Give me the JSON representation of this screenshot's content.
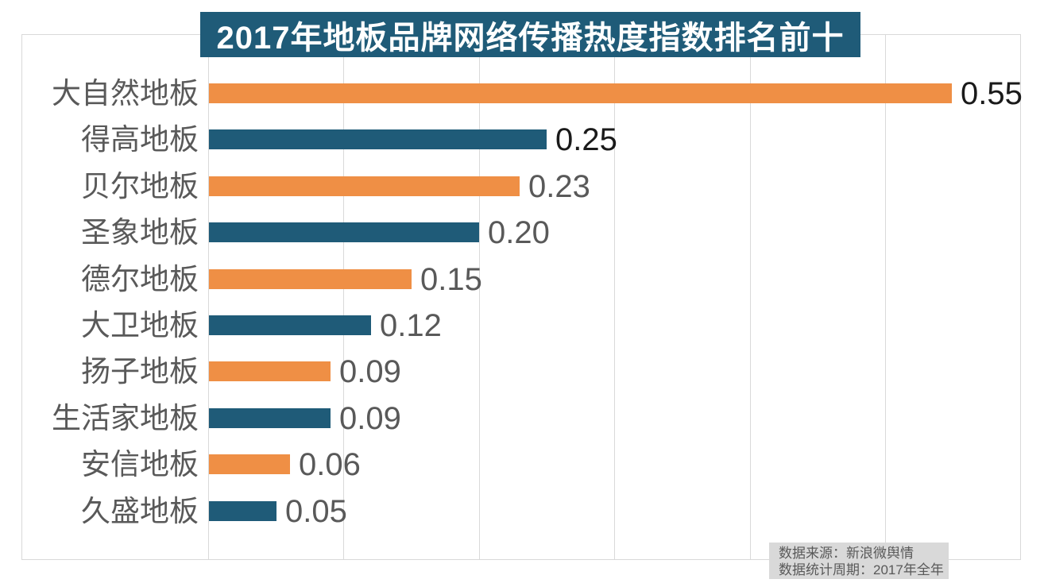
{
  "colors": {
    "orange": "#EF8F45",
    "blue": "#1F5B78",
    "grid": "#D9D9D9",
    "label_gray": "#595959",
    "value_emphasis": "#1A1A1A",
    "value_normal": "#595959",
    "note_bg": "#D9D9D9",
    "title_bg": "#1F5B78",
    "title_text": "#FFFFFF"
  },
  "source_note": {
    "line1": "数据来源：新浪微舆情",
    "line2": "数据统计周期：2017年全年"
  },
  "chart_data": {
    "type": "bar",
    "orientation": "horizontal",
    "title": "2017年地板品牌网络传播热度指数排名前十",
    "categories": [
      "大自然地板",
      "得高地板",
      "贝尔地板",
      "圣象地板",
      "德尔地板",
      "大卫地板",
      "扬子地板",
      "生活家地板",
      "安信地板",
      "久盛地板"
    ],
    "values": [
      0.55,
      0.25,
      0.23,
      0.2,
      0.15,
      0.12,
      0.09,
      0.09,
      0.06,
      0.05
    ],
    "value_labels": [
      "0.55",
      "0.25",
      "0.23",
      "0.20",
      "0.15",
      "0.12",
      "0.09",
      "0.09",
      "0.06",
      "0.05"
    ],
    "value_emphasized": [
      true,
      true,
      false,
      false,
      false,
      false,
      false,
      false,
      false,
      false
    ],
    "color_pattern": [
      "orange",
      "blue"
    ],
    "xlim": [
      0,
      0.6
    ],
    "gridline_interval": 0.1,
    "grid": "vertical",
    "legend": "none",
    "xlabel": "",
    "ylabel": ""
  }
}
